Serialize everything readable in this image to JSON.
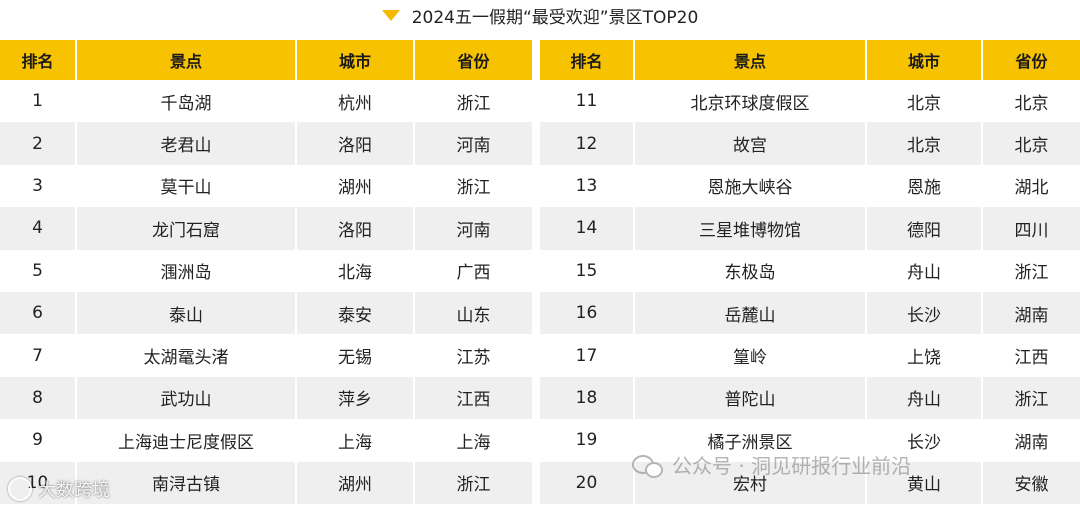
{
  "title": "2024五一假期“最受欢迎”景区TOP20",
  "headers": {
    "rank": "排名",
    "spot": "景点",
    "city": "城市",
    "province": "省份"
  },
  "left_rows": [
    {
      "rank": "1",
      "spot": "千岛湖",
      "city": "杭州",
      "province": "浙江"
    },
    {
      "rank": "2",
      "spot": "老君山",
      "city": "洛阳",
      "province": "河南"
    },
    {
      "rank": "3",
      "spot": "莫干山",
      "city": "湖州",
      "province": "浙江"
    },
    {
      "rank": "4",
      "spot": "龙门石窟",
      "city": "洛阳",
      "province": "河南"
    },
    {
      "rank": "5",
      "spot": "涠洲岛",
      "city": "北海",
      "province": "广西"
    },
    {
      "rank": "6",
      "spot": "泰山",
      "city": "泰安",
      "province": "山东"
    },
    {
      "rank": "7",
      "spot": "太湖鼋头渚",
      "city": "无锡",
      "province": "江苏"
    },
    {
      "rank": "8",
      "spot": "武功山",
      "city": "萍乡",
      "province": "江西"
    },
    {
      "rank": "9",
      "spot": "上海迪士尼度假区",
      "city": "上海",
      "province": "上海"
    },
    {
      "rank": "10",
      "spot": "南浔古镇",
      "city": "湖州",
      "province": "浙江"
    }
  ],
  "right_rows": [
    {
      "rank": "11",
      "spot": "北京环球度假区",
      "city": "北京",
      "province": "北京"
    },
    {
      "rank": "12",
      "spot": "故宫",
      "city": "北京",
      "province": "北京"
    },
    {
      "rank": "13",
      "spot": "恩施大峡谷",
      "city": "恩施",
      "province": "湖北"
    },
    {
      "rank": "14",
      "spot": "三星堆博物馆",
      "city": "德阳",
      "province": "四川"
    },
    {
      "rank": "15",
      "spot": "东极岛",
      "city": "舟山",
      "province": "浙江"
    },
    {
      "rank": "16",
      "spot": "岳麓山",
      "city": "长沙",
      "province": "湖南"
    },
    {
      "rank": "17",
      "spot": "篁岭",
      "city": "上饶",
      "province": "江西"
    },
    {
      "rank": "18",
      "spot": "普陀山",
      "city": "舟山",
      "province": "浙江"
    },
    {
      "rank": "19",
      "spot": "橘子洲景区",
      "city": "长沙",
      "province": "湖南"
    },
    {
      "rank": "20",
      "spot": "宏村",
      "city": "黄山",
      "province": "安徽"
    }
  ],
  "watermark": "公众号 · 洞见研报行业前沿",
  "brand": "大数跨境",
  "colors": {
    "header": "#f7c200",
    "stripe": "#efefef",
    "accent": "#f5b800"
  }
}
